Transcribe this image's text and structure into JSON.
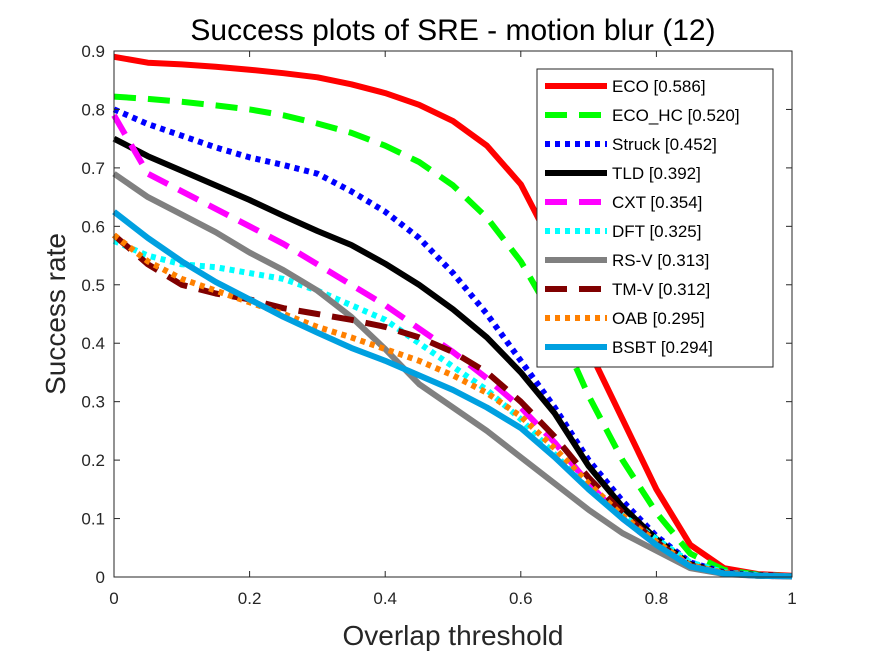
{
  "chart_data": {
    "type": "line",
    "title": "Success plots of SRE - motion blur (12)",
    "xlabel": "Overlap threshold",
    "ylabel": "Success rate",
    "xlim": [
      0,
      1
    ],
    "ylim": [
      0,
      0.9
    ],
    "xticks": [
      0,
      0.2,
      0.4,
      0.6,
      0.8,
      1
    ],
    "xtick_labels": [
      "0",
      "0.2",
      "0.4",
      "0.6",
      "0.8",
      "1"
    ],
    "yticks": [
      0,
      0.1,
      0.2,
      0.3,
      0.4,
      0.5,
      0.6,
      0.7,
      0.8,
      0.9
    ],
    "ytick_labels": [
      "0",
      "0.1",
      "0.2",
      "0.3",
      "0.4",
      "0.5",
      "0.6",
      "0.7",
      "0.8",
      "0.9"
    ],
    "grid": false,
    "legend_position": "top-right",
    "x": [
      0,
      0.05,
      0.1,
      0.15,
      0.2,
      0.25,
      0.3,
      0.35,
      0.4,
      0.45,
      0.5,
      0.55,
      0.6,
      0.65,
      0.7,
      0.75,
      0.8,
      0.85,
      0.9,
      0.95,
      1
    ],
    "series": [
      {
        "name": "ECO",
        "legend_label": "ECO [0.586]",
        "color": "#ff0000",
        "style": "solid",
        "values": [
          0.89,
          0.88,
          0.877,
          0.873,
          0.868,
          0.862,
          0.855,
          0.843,
          0.828,
          0.808,
          0.78,
          0.738,
          0.672,
          0.56,
          0.39,
          0.27,
          0.15,
          0.055,
          0.015,
          0.005,
          0.002
        ]
      },
      {
        "name": "ECO_HC",
        "legend_label": "ECO_HC [0.520]",
        "color": "#00ff00",
        "style": "dashed",
        "values": [
          0.822,
          0.818,
          0.813,
          0.807,
          0.8,
          0.79,
          0.776,
          0.76,
          0.738,
          0.71,
          0.67,
          0.615,
          0.54,
          0.44,
          0.31,
          0.2,
          0.11,
          0.04,
          0.012,
          0.004,
          0.001
        ]
      },
      {
        "name": "Struck",
        "legend_label": "Struck [0.452]",
        "color": "#0000ff",
        "style": "dotted",
        "values": [
          0.8,
          0.775,
          0.755,
          0.735,
          0.718,
          0.705,
          0.69,
          0.66,
          0.625,
          0.58,
          0.52,
          0.45,
          0.37,
          0.29,
          0.2,
          0.13,
          0.07,
          0.025,
          0.008,
          0.003,
          0.001
        ]
      },
      {
        "name": "TLD",
        "legend_label": "TLD [0.392]",
        "color": "#000000",
        "style": "solid",
        "values": [
          0.75,
          0.72,
          0.695,
          0.67,
          0.645,
          0.618,
          0.592,
          0.568,
          0.536,
          0.5,
          0.458,
          0.41,
          0.35,
          0.28,
          0.19,
          0.12,
          0.065,
          0.022,
          0.007,
          0.003,
          0.001
        ]
      },
      {
        "name": "CXT",
        "legend_label": "CXT [0.354]",
        "color": "#ff00ff",
        "style": "dashed",
        "values": [
          0.79,
          0.69,
          0.66,
          0.63,
          0.6,
          0.57,
          0.535,
          0.5,
          0.465,
          0.425,
          0.385,
          0.34,
          0.29,
          0.23,
          0.16,
          0.1,
          0.055,
          0.02,
          0.006,
          0.002,
          0.001
        ]
      },
      {
        "name": "DFT",
        "legend_label": "DFT [0.325]",
        "color": "#00ffff",
        "style": "dotted",
        "values": [
          0.575,
          0.55,
          0.535,
          0.53,
          0.52,
          0.51,
          0.49,
          0.465,
          0.44,
          0.4,
          0.36,
          0.32,
          0.27,
          0.21,
          0.15,
          0.105,
          0.065,
          0.025,
          0.008,
          0.003,
          0.001
        ]
      },
      {
        "name": "RS-V",
        "legend_label": "RS-V [0.313]",
        "color": "#808080",
        "style": "solid",
        "values": [
          0.69,
          0.65,
          0.62,
          0.59,
          0.555,
          0.525,
          0.49,
          0.445,
          0.39,
          0.33,
          0.29,
          0.25,
          0.205,
          0.16,
          0.115,
          0.075,
          0.045,
          0.015,
          0.005,
          0.002,
          0.001
        ]
      },
      {
        "name": "TM-V",
        "legend_label": "TM-V [0.312]",
        "color": "#800000",
        "style": "dashed",
        "values": [
          0.585,
          0.535,
          0.5,
          0.485,
          0.475,
          0.46,
          0.45,
          0.44,
          0.428,
          0.41,
          0.385,
          0.35,
          0.3,
          0.24,
          0.17,
          0.11,
          0.06,
          0.02,
          0.007,
          0.002,
          0.001
        ]
      },
      {
        "name": "OAB",
        "legend_label": "OAB [0.295]",
        "color": "#ff8000",
        "style": "dotted",
        "values": [
          0.585,
          0.54,
          0.51,
          0.49,
          0.47,
          0.45,
          0.428,
          0.41,
          0.39,
          0.37,
          0.345,
          0.315,
          0.275,
          0.22,
          0.16,
          0.105,
          0.06,
          0.02,
          0.007,
          0.002,
          0.001
        ]
      },
      {
        "name": "BSBT",
        "legend_label": "BSBT [0.294]",
        "color": "#00a0e0",
        "style": "solid",
        "values": [
          0.625,
          0.58,
          0.54,
          0.505,
          0.475,
          0.445,
          0.418,
          0.392,
          0.37,
          0.345,
          0.32,
          0.29,
          0.255,
          0.205,
          0.15,
          0.1,
          0.055,
          0.018,
          0.006,
          0.002,
          0.001
        ]
      }
    ]
  }
}
